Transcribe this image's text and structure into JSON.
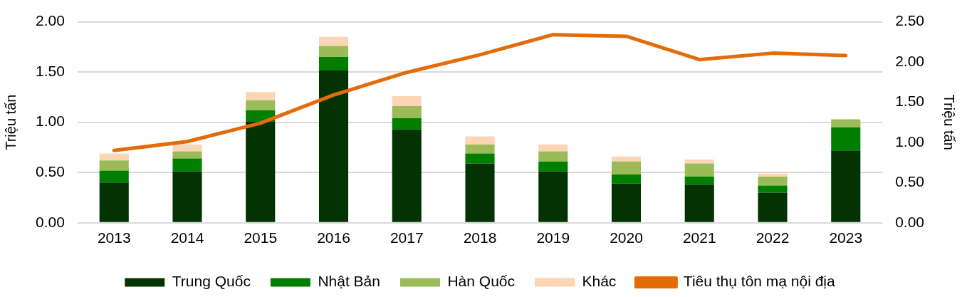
{
  "chart_data": {
    "type": "bar",
    "stacked": true,
    "categories": [
      "2013",
      "2014",
      "2015",
      "2016",
      "2017",
      "2018",
      "2019",
      "2020",
      "2021",
      "2022",
      "2023"
    ],
    "ylabel": "Triệu tấn",
    "y2label": "Triệu tấn",
    "ylim": [
      0,
      2
    ],
    "yticks": [
      {
        "value": 0,
        "label": "0.00"
      },
      {
        "value": 0.5,
        "label": "0.50"
      },
      {
        "value": 1,
        "label": "1.00"
      },
      {
        "value": 1.5,
        "label": "1.50"
      },
      {
        "value": 2,
        "label": "2.00"
      }
    ],
    "y2lim": [
      0,
      2.5
    ],
    "y2ticks": [
      {
        "value": 0,
        "label": "0.00"
      },
      {
        "value": 0.5,
        "label": "0.50"
      },
      {
        "value": 1,
        "label": "1.00"
      },
      {
        "value": 1.5,
        "label": "1.50"
      },
      {
        "value": 2,
        "label": "2.00"
      },
      {
        "value": 2.5,
        "label": "2.50"
      }
    ],
    "grid": "y",
    "legend": "bottom",
    "series": [
      {
        "name": "Trung Quốc",
        "color": "#033303",
        "values": [
          0.4,
          0.51,
          1.01,
          1.52,
          0.93,
          0.59,
          0.51,
          0.39,
          0.38,
          0.3,
          0.72
        ]
      },
      {
        "name": "Nhật Bản",
        "color": "#007f00",
        "values": [
          0.12,
          0.13,
          0.11,
          0.13,
          0.11,
          0.1,
          0.1,
          0.09,
          0.08,
          0.07,
          0.23
        ]
      },
      {
        "name": "Hàn Quốc",
        "color": "#9bbb59",
        "values": [
          0.1,
          0.07,
          0.1,
          0.11,
          0.12,
          0.09,
          0.1,
          0.13,
          0.13,
          0.09,
          0.08
        ]
      },
      {
        "name": "Khác",
        "color": "#fbd5b5",
        "values": [
          0.07,
          0.07,
          0.08,
          0.09,
          0.1,
          0.08,
          0.07,
          0.05,
          0.04,
          0.03,
          null
        ]
      },
      {
        "name": "Tiêu thụ tôn mạ nội địa",
        "type": "line",
        "axis": "y2",
        "color": "#e36c09",
        "values": [
          0.9,
          1.01,
          1.24,
          1.59,
          1.87,
          2.09,
          2.34,
          2.32,
          2.03,
          2.11,
          2.08
        ]
      }
    ]
  }
}
